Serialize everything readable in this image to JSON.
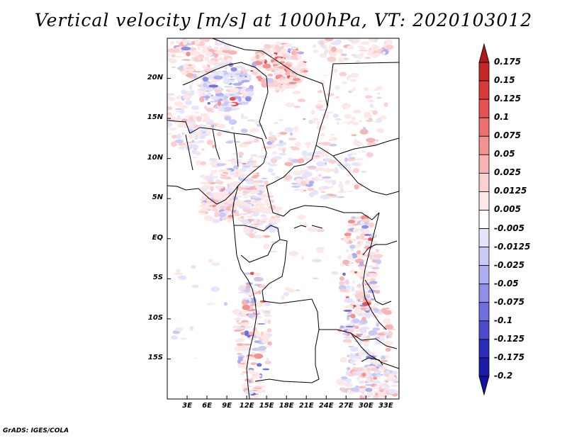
{
  "title": "Vertical velocity [m/s] at 1000hPa, VT: 2020103012",
  "credit": "GrADS: IGES/COLA",
  "map": {
    "lon_range": [
      0,
      35
    ],
    "lat_range": [
      -20,
      25
    ],
    "lat_labels": [
      "20N",
      "15N",
      "10N",
      "5N",
      "EQ",
      "5S",
      "10S",
      "15S"
    ],
    "lat_values": [
      20,
      15,
      10,
      5,
      0,
      -5,
      -10,
      -15
    ],
    "lon_labels": [
      "3E",
      "6E",
      "9E",
      "12E",
      "15E",
      "18E",
      "21E",
      "24E",
      "27E",
      "30E",
      "33E"
    ],
    "lon_values": [
      3,
      6,
      9,
      12,
      15,
      18,
      21,
      24,
      27,
      30,
      33
    ]
  },
  "colorbar": {
    "labels": [
      "0.175",
      "0.15",
      "0.125",
      "0.1",
      "0.075",
      "0.05",
      "0.025",
      "0.0125",
      "0.005",
      "-0.005",
      "-0.0125",
      "-0.025",
      "-0.05",
      "-0.075",
      "-0.1",
      "-0.125",
      "-0.175",
      "-0.2"
    ],
    "colors": [
      "#b01a1a",
      "#c52626",
      "#d83a3a",
      "#e65252",
      "#ee7070",
      "#f39090",
      "#f8b4b4",
      "#fbd0d0",
      "#fde8e8",
      "#ffffff",
      "#e4e4fb",
      "#cacaf6",
      "#aeaef0",
      "#8f8fe8",
      "#6e6ede",
      "#4b4bcf",
      "#2b2bbc",
      "#1a1aa6",
      "#12129a"
    ]
  },
  "colors": {
    "positive": "#e24a4a",
    "negative": "#5a5ae6",
    "borders": "#000000"
  }
}
